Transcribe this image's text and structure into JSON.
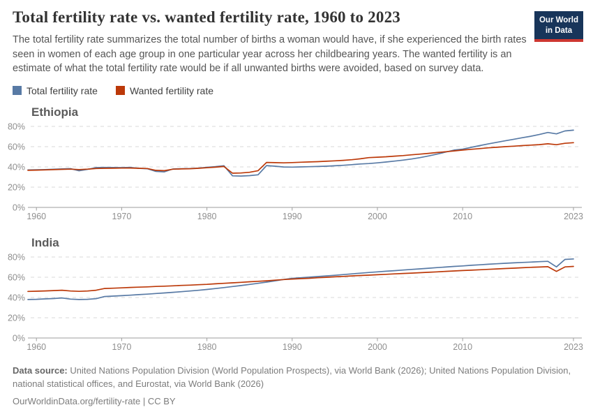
{
  "header": {
    "title": "Total fertility rate vs. wanted fertility rate, 1960 to 2023",
    "subtitle": "The total fertility rate summarizes the total number of births a woman would have, if she experienced the birth rates seen in women of each age group in one particular year across her childbearing years. The wanted fertility is an estimate of what the total fertility rate would be if all unwanted births were avoided, based on survey data.",
    "logo": {
      "line1": "Our World",
      "line2": "in Data",
      "bg": "#18355a",
      "accent": "#cd3731"
    }
  },
  "legend": {
    "items": [
      {
        "label": "Total fertility rate",
        "color": "#587aa5"
      },
      {
        "label": "Wanted fertility rate",
        "color": "#bc3909"
      }
    ]
  },
  "chart_data": [
    {
      "type": "line",
      "title": "Ethiopia",
      "xlabel": "",
      "ylabel": "",
      "ylim": [
        0,
        84
      ],
      "yticks": [
        0,
        20,
        40,
        60,
        80
      ],
      "ytick_suffix": "%",
      "xticks": [
        1960,
        1970,
        1980,
        1990,
        2000,
        2010,
        2023
      ],
      "grid": true,
      "x": [
        1959,
        1960,
        1961,
        1962,
        1963,
        1964,
        1965,
        1966,
        1967,
        1968,
        1969,
        1970,
        1971,
        1972,
        1973,
        1974,
        1975,
        1976,
        1977,
        1978,
        1979,
        1980,
        1981,
        1982,
        1983,
        1984,
        1985,
        1986,
        1987,
        1988,
        1989,
        1990,
        1991,
        1992,
        1993,
        1994,
        1995,
        1996,
        1997,
        1998,
        1999,
        2000,
        2001,
        2002,
        2003,
        2004,
        2005,
        2006,
        2007,
        2008,
        2009,
        2010,
        2011,
        2012,
        2013,
        2014,
        2015,
        2016,
        2017,
        2018,
        2019,
        2020,
        2021,
        2022,
        2023
      ],
      "series": [
        {
          "name": "Total fertility rate",
          "color": "#587aa5",
          "values": [
            37.0,
            37.2,
            37.4,
            37.7,
            38.0,
            38.3,
            36.2,
            37.6,
            39.3,
            39.5,
            39.4,
            39.3,
            39.5,
            38.6,
            38.2,
            35.6,
            35.1,
            37.9,
            38.2,
            38.4,
            38.8,
            39.6,
            40.3,
            41.2,
            31.2,
            31.0,
            31.4,
            32.2,
            41.3,
            40.7,
            39.9,
            39.8,
            40.0,
            40.2,
            40.4,
            40.7,
            41.1,
            41.6,
            42.2,
            42.9,
            43.3,
            44.0,
            44.8,
            45.7,
            46.7,
            47.8,
            49.2,
            50.8,
            52.6,
            54.6,
            56.6,
            57.5,
            59.3,
            61.0,
            62.7,
            64.3,
            65.8,
            67.3,
            68.8,
            70.3,
            72.0,
            74.0,
            72.6,
            75.5,
            76.3
          ]
        },
        {
          "name": "Wanted fertility rate",
          "color": "#bc3909",
          "values": [
            36.6,
            36.8,
            37.0,
            37.3,
            37.6,
            37.8,
            37.4,
            37.8,
            38.4,
            38.6,
            38.7,
            38.8,
            38.9,
            38.6,
            38.4,
            36.6,
            36.3,
            37.7,
            38.0,
            38.2,
            38.6,
            39.2,
            39.7,
            40.4,
            33.8,
            34.0,
            34.7,
            36.3,
            44.4,
            44.2,
            44.0,
            44.3,
            44.6,
            44.9,
            45.2,
            45.6,
            46.0,
            46.5,
            47.1,
            48.0,
            49.2,
            49.6,
            50.0,
            50.6,
            51.2,
            51.9,
            52.6,
            53.4,
            54.2,
            55.0,
            55.8,
            56.6,
            57.4,
            58.1,
            58.8,
            59.4,
            60.0,
            60.5,
            61.0,
            61.5,
            62.0,
            62.8,
            61.9,
            63.3,
            63.9
          ]
        }
      ]
    },
    {
      "type": "line",
      "title": "India",
      "xlabel": "",
      "ylabel": "",
      "ylim": [
        0,
        84
      ],
      "yticks": [
        0,
        20,
        40,
        60,
        80
      ],
      "ytick_suffix": "%",
      "xticks": [
        1960,
        1970,
        1980,
        1990,
        2000,
        2010,
        2023
      ],
      "grid": true,
      "x": [
        1959,
        1960,
        1961,
        1962,
        1963,
        1964,
        1965,
        1966,
        1967,
        1968,
        1969,
        1970,
        1971,
        1972,
        1973,
        1974,
        1975,
        1976,
        1977,
        1978,
        1979,
        1980,
        1981,
        1982,
        1983,
        1984,
        1985,
        1986,
        1987,
        1988,
        1989,
        1990,
        1991,
        1992,
        1993,
        1994,
        1995,
        1996,
        1997,
        1998,
        1999,
        2000,
        2001,
        2002,
        2003,
        2004,
        2005,
        2006,
        2007,
        2008,
        2009,
        2010,
        2011,
        2012,
        2013,
        2014,
        2015,
        2016,
        2017,
        2018,
        2019,
        2020,
        2021,
        2022,
        2023
      ],
      "series": [
        {
          "name": "Total fertility rate",
          "color": "#587aa5",
          "values": [
            38.0,
            38.2,
            38.6,
            39.0,
            39.5,
            38.4,
            38.0,
            38.2,
            38.8,
            41.0,
            41.4,
            41.8,
            42.3,
            42.8,
            43.3,
            43.9,
            44.5,
            45.1,
            45.7,
            46.4,
            47.1,
            47.9,
            48.8,
            49.8,
            50.8,
            51.8,
            52.9,
            54.0,
            55.2,
            56.5,
            57.8,
            58.9,
            59.5,
            60.1,
            60.7,
            61.3,
            61.9,
            62.6,
            63.3,
            64.0,
            64.7,
            65.3,
            65.9,
            66.5,
            67.1,
            67.7,
            68.3,
            68.9,
            69.5,
            70.1,
            70.7,
            71.2,
            71.8,
            72.3,
            72.8,
            73.3,
            73.8,
            74.2,
            74.6,
            75.0,
            75.4,
            75.7,
            70.2,
            77.6,
            78.1
          ]
        },
        {
          "name": "Wanted fertility rate",
          "color": "#bc3909",
          "values": [
            46.0,
            46.2,
            46.5,
            46.8,
            47.2,
            46.4,
            46.1,
            46.4,
            47.2,
            48.9,
            49.2,
            49.5,
            49.9,
            50.2,
            50.5,
            50.9,
            51.2,
            51.5,
            51.9,
            52.2,
            52.6,
            53.0,
            53.5,
            54.0,
            54.5,
            55.0,
            55.5,
            56.0,
            56.5,
            57.1,
            57.7,
            58.2,
            58.6,
            59.0,
            59.5,
            59.9,
            60.4,
            60.8,
            61.3,
            61.7,
            62.1,
            62.5,
            62.9,
            63.3,
            63.7,
            64.1,
            64.5,
            64.9,
            65.3,
            65.8,
            66.2,
            66.6,
            67.0,
            67.4,
            67.8,
            68.2,
            68.6,
            69.0,
            69.4,
            69.8,
            70.1,
            70.4,
            65.8,
            70.2,
            70.7
          ]
        }
      ]
    }
  ],
  "footer": {
    "source_label": "Data source:",
    "source_text": " United Nations Population Division (World Population Prospects), via World Bank (2026); United Nations Population Division, national statistical offices, and Eurostat, via World Bank (2026)",
    "link": "OurWorldinData.org/fertility-rate | CC BY"
  }
}
